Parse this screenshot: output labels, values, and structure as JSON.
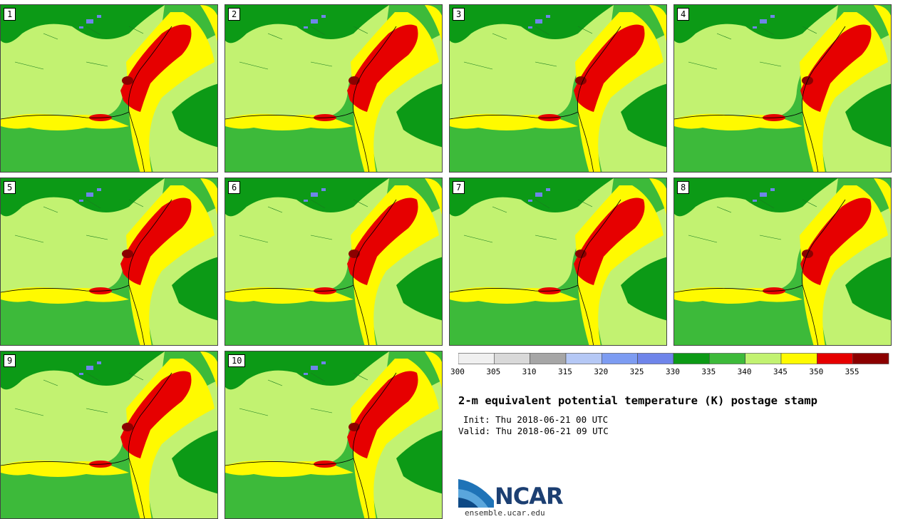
{
  "panels": [
    "1",
    "2",
    "3",
    "4",
    "5",
    "6",
    "7",
    "8",
    "9",
    "10"
  ],
  "colorbar": {
    "ticks": [
      "300",
      "305",
      "310",
      "315",
      "320",
      "325",
      "330",
      "335",
      "340",
      "345",
      "350",
      "355"
    ],
    "colors": [
      "#f0f0f0",
      "#d9d9d9",
      "#a6a6a6",
      "#b5c8f5",
      "#7d9cf2",
      "#6f85ea",
      "#0c9a16",
      "#3dba3a",
      "#c2f271",
      "#fffa00",
      "#e60000",
      "#8b0000"
    ]
  },
  "title": "2-m equivalent potential temperature (K) postage stamp",
  "init": "Init: Thu 2018-06-21 00 UTC",
  "valid": "Valid: Thu 2018-06-21 09 UTC",
  "site": "ensemble.ucar.edu",
  "logo_text": "NCAR",
  "colors": {
    "land_green": "#3dba3a",
    "dark_green": "#0c9a16",
    "light_green": "#c2f271",
    "yellow": "#fffa00",
    "red": "#e60000",
    "dark_red": "#8b0000",
    "blue": "#6f85ea"
  }
}
